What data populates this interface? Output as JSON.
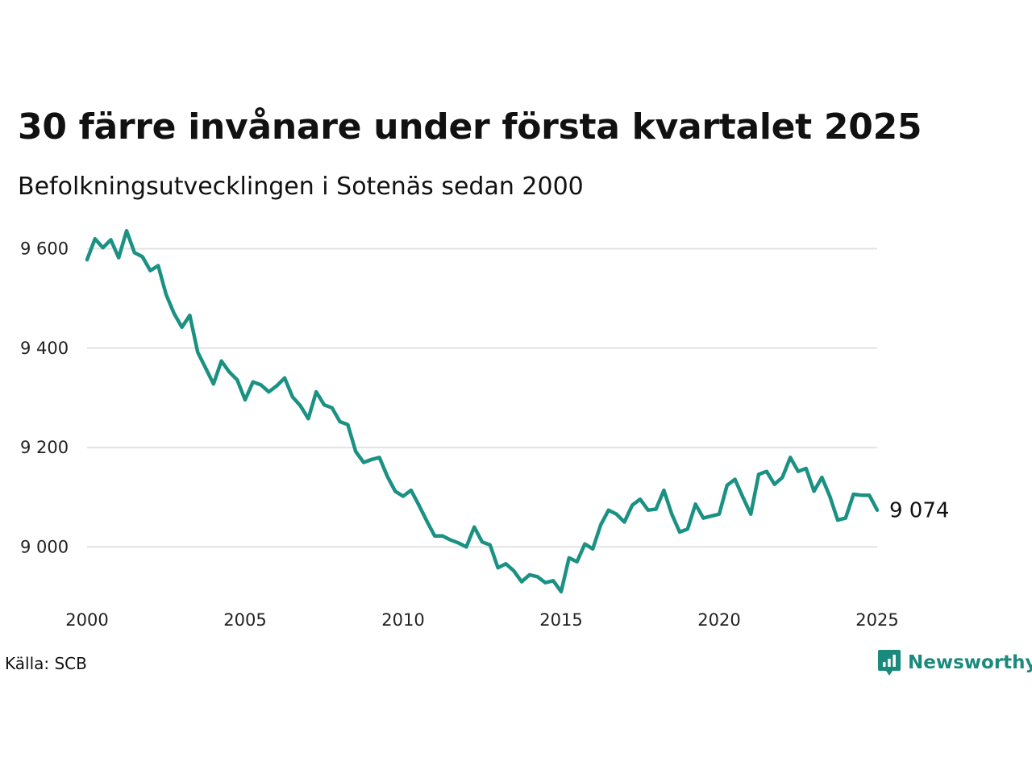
{
  "header": {
    "title": "30 färre invånare under första kvartalet 2025",
    "subtitle": "Befolkningsutvecklingen i Sotenäs sedan 2000"
  },
  "footer": {
    "source": "Källa: SCB",
    "brand": "Newsworthy"
  },
  "colors": {
    "line": "#1a9182",
    "grid": "#e3e3e3",
    "brand": "#1a8a7c"
  },
  "chart_data": {
    "type": "line",
    "title": "30 färre invånare under första kvartalet 2025",
    "subtitle": "Befolkningsutvecklingen i Sotenäs sedan 2000",
    "xlabel": "",
    "ylabel": "",
    "xlim": [
      2000,
      2025
    ],
    "ylim": [
      8900,
      9630
    ],
    "x_ticks": [
      2000,
      2005,
      2010,
      2015,
      2020,
      2025
    ],
    "x_tick_labels": [
      "2000",
      "2005",
      "2010",
      "2015",
      "2020",
      "2025"
    ],
    "y_ticks": [
      9000,
      9200,
      9400,
      9600
    ],
    "y_tick_labels": [
      "9 000",
      "9 200",
      "9 400",
      "9 600"
    ],
    "grid": true,
    "end_label": "9 074",
    "series": [
      {
        "x": [
          2000.0,
          2000.25,
          2000.5,
          2000.75,
          2001.0,
          2001.25,
          2001.5,
          2001.75,
          2002.0,
          2002.25,
          2002.5,
          2002.75,
          2003.0,
          2003.25,
          2003.5,
          2003.75,
          2004.0,
          2004.25,
          2004.5,
          2004.75,
          2005.0,
          2005.25,
          2005.5,
          2005.75,
          2006.0,
          2006.25,
          2006.5,
          2006.75,
          2007.0,
          2007.25,
          2007.5,
          2007.75,
          2008.0,
          2008.25,
          2008.5,
          2008.75,
          2009.0,
          2009.25,
          2009.5,
          2009.75,
          2010.0,
          2010.25,
          2010.5,
          2010.75,
          2011.0,
          2011.25,
          2011.5,
          2011.75,
          2012.0,
          2012.25,
          2012.5,
          2012.75,
          2013.0,
          2013.25,
          2013.5,
          2013.75,
          2014.0,
          2014.25,
          2014.5,
          2014.75,
          2015.0,
          2015.25,
          2015.5,
          2015.75,
          2016.0,
          2016.25,
          2016.5,
          2016.75,
          2017.0,
          2017.25,
          2017.5,
          2017.75,
          2018.0,
          2018.25,
          2018.5,
          2018.75,
          2019.0,
          2019.25,
          2019.5,
          2019.75,
          2020.0,
          2020.25,
          2020.5,
          2020.75,
          2021.0,
          2021.25,
          2021.5,
          2021.75,
          2022.0,
          2022.25,
          2022.5,
          2022.75,
          2023.0,
          2023.25,
          2023.5,
          2023.75,
          2024.0,
          2024.25,
          2024.5,
          2024.75,
          2025.0
        ],
        "values": [
          9578,
          9620,
          9602,
          9618,
          9582,
          9636,
          9592,
          9584,
          9556,
          9566,
          9508,
          9470,
          9442,
          9466,
          9392,
          9360,
          9328,
          9374,
          9352,
          9336,
          9296,
          9332,
          9326,
          9312,
          9324,
          9340,
          9302,
          9284,
          9258,
          9312,
          9286,
          9280,
          9252,
          9246,
          9192,
          9170,
          9176,
          9180,
          9142,
          9112,
          9102,
          9114,
          9084,
          9052,
          9022,
          9022,
          9014,
          9008,
          9000,
          9040,
          9010,
          9004,
          8958,
          8966,
          8952,
          8930,
          8944,
          8940,
          8928,
          8932,
          8910,
          8978,
          8970,
          9006,
          8996,
          9044,
          9074,
          9066,
          9050,
          9084,
          9096,
          9074,
          9076,
          9114,
          9066,
          9030,
          9036,
          9086,
          9058,
          9062,
          9066,
          9124,
          9136,
          9100,
          9066,
          9146,
          9152,
          9126,
          9140,
          9180,
          9152,
          9158,
          9112,
          9140,
          9102,
          9054,
          9058,
          9106,
          9104,
          9104,
          9074
        ]
      }
    ]
  }
}
